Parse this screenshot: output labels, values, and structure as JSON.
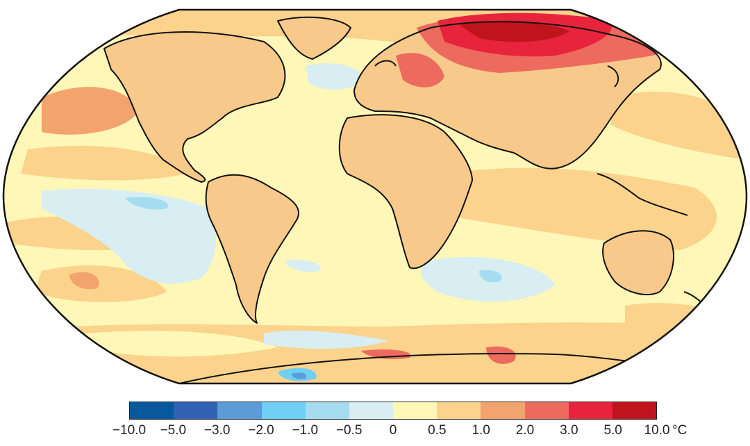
{
  "legend": {
    "tick_labels": [
      "−10.0",
      "−5.0",
      "−3.0",
      "−2.0",
      "−1.0",
      "−0.5",
      "0",
      "0.5",
      "1.0",
      "2.0",
      "3.0",
      "5.0",
      "10.0"
    ],
    "unit": "°C",
    "bin_colors": [
      "#08589e",
      "#3162b4",
      "#5a9bd8",
      "#6fcff4",
      "#a6dcef",
      "#d8eef2",
      "#fff7b8",
      "#fbd38c",
      "#f3a36e",
      "#ec6b5e",
      "#e8243c",
      "#c0141c"
    ]
  },
  "map": {
    "ocean_base_color": "#fff7b8",
    "land_base_color": "#f7c98a",
    "projection": "robinson"
  }
}
